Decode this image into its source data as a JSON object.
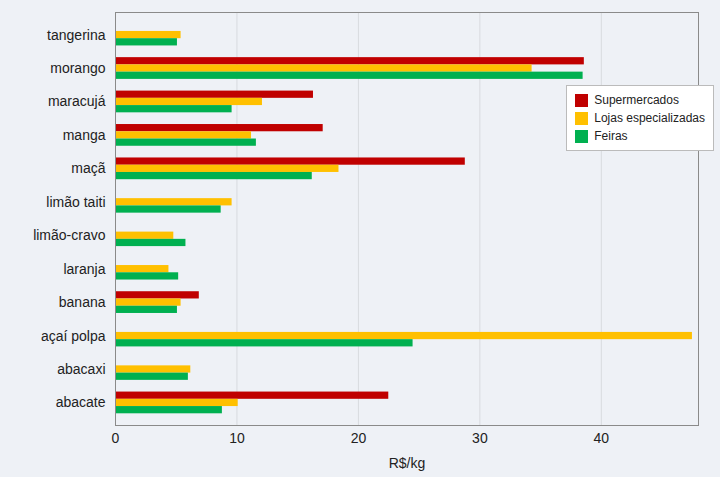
{
  "chart_data": {
    "type": "bar",
    "orientation": "horizontal",
    "categories": [
      "tangerina",
      "morango",
      "maracujá",
      "manga",
      "maçã",
      "limão taiti",
      "limão-cravo",
      "laranja",
      "banana",
      "açaí polpa",
      "abacaxi",
      "abacate"
    ],
    "series": [
      {
        "name": "Supermercados",
        "color": "#c00000",
        "values": [
          null,
          38.6,
          16.3,
          17.1,
          28.8,
          null,
          null,
          null,
          6.9,
          null,
          null,
          22.5
        ]
      },
      {
        "name": "Lojas especializadas",
        "color": "#ffc000",
        "values": [
          5.4,
          34.3,
          12.1,
          11.2,
          18.4,
          9.6,
          4.8,
          4.4,
          5.4,
          47.5,
          6.2,
          10.1
        ]
      },
      {
        "name": "Feiras",
        "color": "#00b050",
        "values": [
          5.1,
          38.5,
          9.6,
          11.6,
          16.2,
          8.7,
          5.8,
          5.2,
          5.1,
          24.5,
          6.0,
          8.8
        ]
      }
    ],
    "xlim": [
      0,
      48
    ],
    "xticks": [
      0,
      10,
      20,
      30,
      40
    ],
    "x_label": "R$/kg",
    "grid": true,
    "legend": "right"
  }
}
